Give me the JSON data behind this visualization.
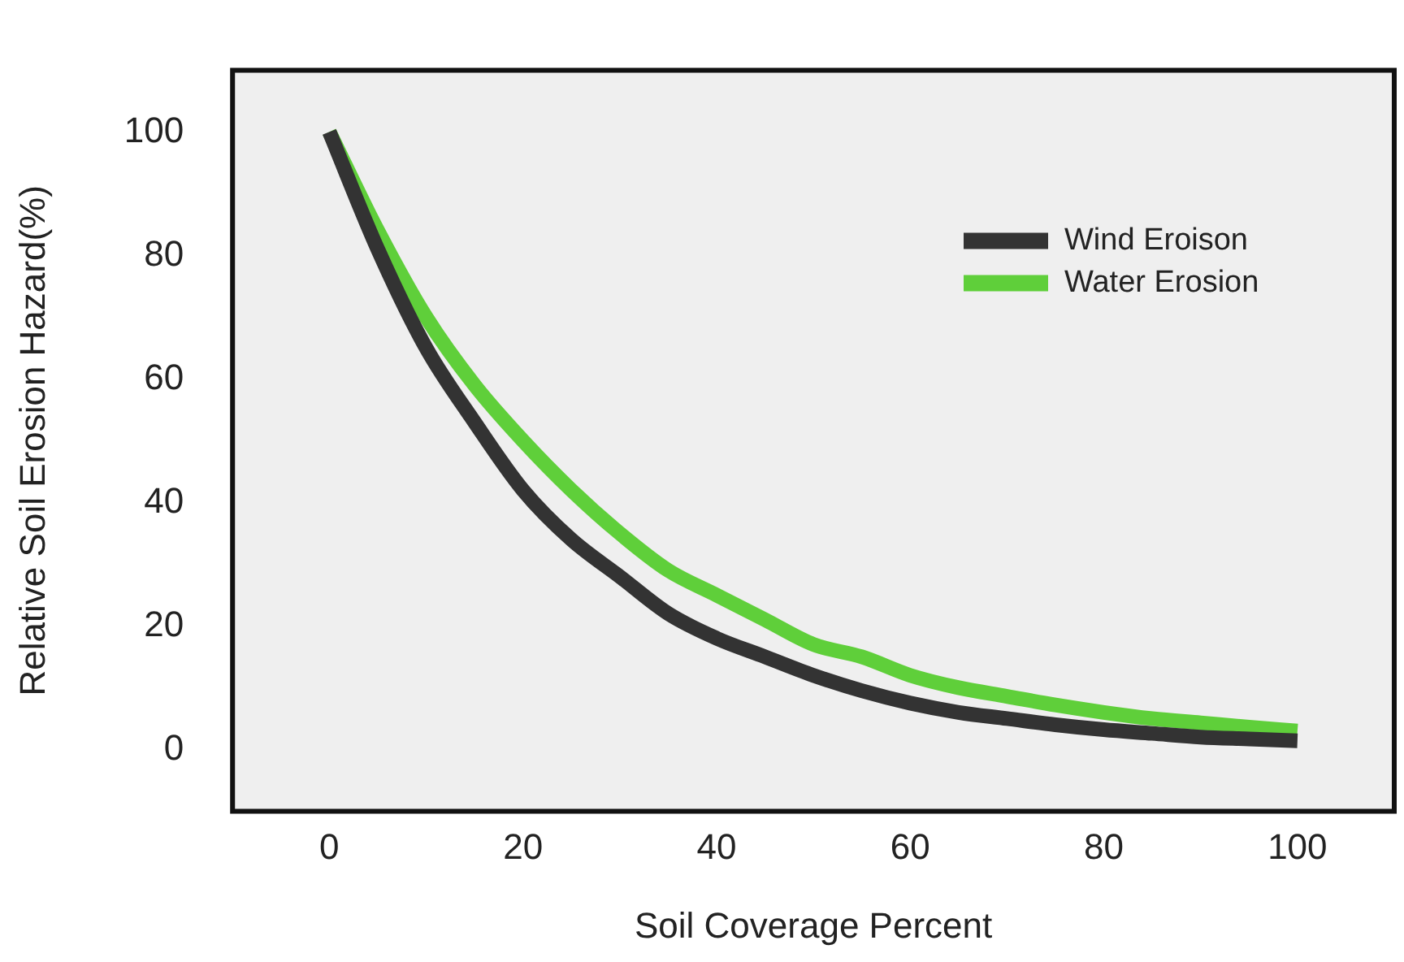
{
  "chart_data": {
    "type": "line",
    "xlabel": "Soil Coverage Percent",
    "ylabel": "Relative Soil Erosion Hazard(%)",
    "x": [
      0,
      5,
      10,
      15,
      20,
      25,
      30,
      35,
      40,
      45,
      50,
      55,
      60,
      65,
      70,
      75,
      80,
      85,
      90,
      95,
      100
    ],
    "series": [
      {
        "name": "Wind Eroison",
        "color": "#333333",
        "values": [
          100,
          81,
          65,
          53,
          42,
          34,
          28,
          22,
          18,
          15,
          12,
          9.5,
          7.5,
          6,
          5,
          4,
          3.2,
          2.6,
          2,
          1.7,
          1.4
        ]
      },
      {
        "name": "Water Erosion",
        "color": "#5fcf3a",
        "values": [
          100,
          84,
          70,
          59,
          50,
          42,
          35,
          29,
          25,
          21,
          17,
          15,
          12,
          10,
          8.6,
          7.2,
          6,
          5,
          4.3,
          3.6,
          3
        ]
      }
    ],
    "xlim": [
      -10,
      110
    ],
    "ylim": [
      -10,
      110
    ],
    "xticks": [
      0,
      20,
      40,
      60,
      80,
      100
    ],
    "yticks": [
      0,
      20,
      40,
      60,
      80,
      100
    ],
    "grid": false,
    "legend": "top right",
    "marker": "none",
    "line_style": "solid"
  }
}
